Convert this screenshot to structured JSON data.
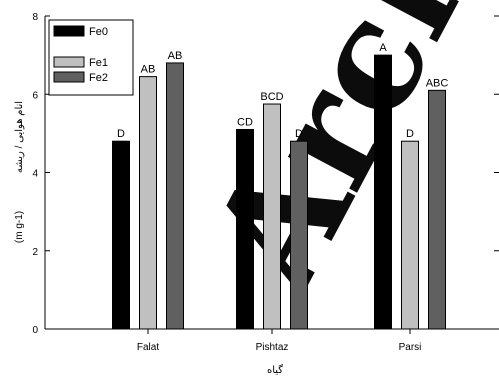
{
  "chart_data": {
    "type": "bar",
    "categories": [
      "Falat",
      "Pishtaz",
      "Parsi"
    ],
    "series": [
      {
        "name": "Fe0",
        "color": "#000000",
        "values": [
          4.8,
          5.1,
          7.0
        ],
        "labels": [
          "D",
          "CD",
          "A"
        ]
      },
      {
        "name": "Fe1",
        "color": "#c0c0c0",
        "values": [
          6.45,
          5.75,
          4.8
        ],
        "labels": [
          "AB",
          "BCD",
          "D"
        ]
      },
      {
        "name": "Fe2",
        "color": "#606060",
        "values": [
          6.8,
          4.8,
          6.1
        ],
        "labels": [
          "AB",
          "D",
          "ABC"
        ]
      }
    ],
    "ylim": [
      0,
      8
    ],
    "yticks": [
      0,
      2,
      4,
      6,
      8
    ],
    "ylabel_unit": "(m g-1)",
    "ylabel_text": "انام هوایی / ریشه",
    "xlabel": "گیاه",
    "legend": "top-left",
    "grid": false
  },
  "watermark": "Archive"
}
